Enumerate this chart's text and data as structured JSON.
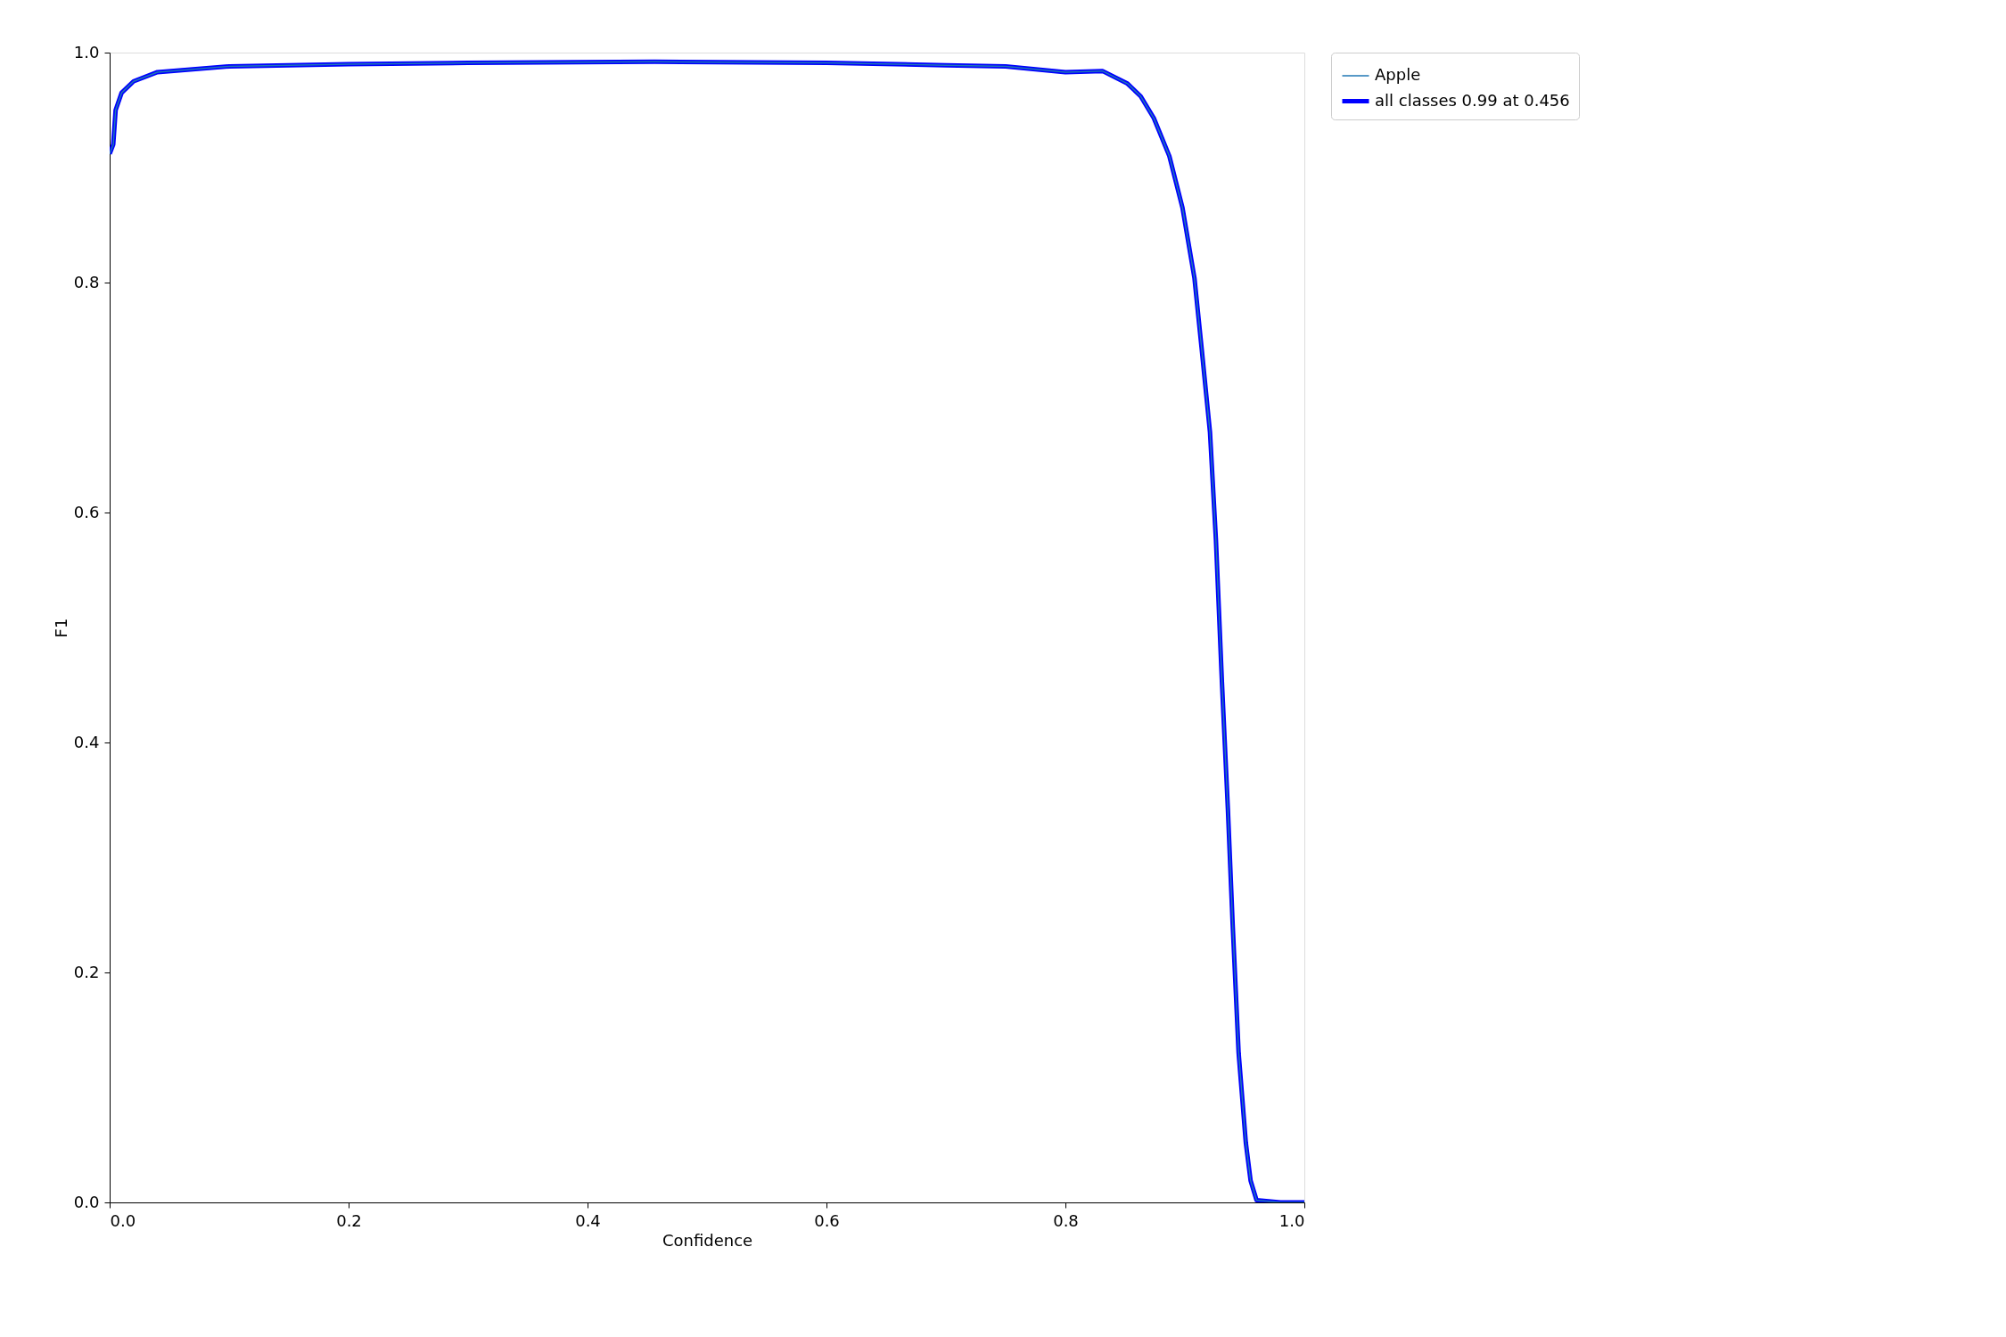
{
  "chart_data": {
    "type": "line",
    "xlabel": "Confidence",
    "ylabel": "F1",
    "xlim": [
      0,
      1
    ],
    "ylim": [
      0,
      1
    ],
    "xticks": [
      {
        "value": 0,
        "label": "0.0"
      },
      {
        "value": 0.2,
        "label": "0.2"
      },
      {
        "value": 0.4,
        "label": "0.4"
      },
      {
        "value": 0.6,
        "label": "0.6"
      },
      {
        "value": 0.8,
        "label": "0.8"
      },
      {
        "value": 1,
        "label": "1.0"
      }
    ],
    "yticks": [
      {
        "value": 0,
        "label": "0.0"
      },
      {
        "value": 0.2,
        "label": "0.2"
      },
      {
        "value": 0.4,
        "label": "0.4"
      },
      {
        "value": 0.6,
        "label": "0.6"
      },
      {
        "value": 0.8,
        "label": "0.8"
      },
      {
        "value": 1,
        "label": "1.0"
      }
    ],
    "x": [
      0,
      0.003,
      0.005,
      0.01,
      0.02,
      0.04,
      0.1,
      0.2,
      0.3,
      0.456,
      0.6,
      0.7,
      0.75,
      0.8,
      0.831,
      0.852,
      0.863,
      0.874,
      0.887,
      0.898,
      0.908,
      0.914,
      0.921,
      0.926,
      0.931,
      0.936,
      0.94,
      0.945,
      0.951,
      0.955,
      0.96,
      0.98,
      1
    ],
    "series": [
      {
        "name": "Apple",
        "color": "#1f77b4",
        "values": [
          0.912,
          0.92,
          0.95,
          0.965,
          0.975,
          0.983,
          0.988,
          0.99,
          0.991,
          0.992,
          0.991,
          0.989,
          0.988,
          0.983,
          0.984,
          0.973,
          0.962,
          0.943,
          0.91,
          0.865,
          0.804,
          0.743,
          0.67,
          0.576,
          0.453,
          0.342,
          0.242,
          0.13,
          0.052,
          0.019,
          0.002,
          0,
          0
        ]
      },
      {
        "name": "all classes 0.99 at 0.456",
        "color": "#0000ff",
        "values": [
          0.912,
          0.92,
          0.95,
          0.965,
          0.975,
          0.983,
          0.988,
          0.99,
          0.991,
          0.992,
          0.991,
          0.989,
          0.988,
          0.983,
          0.984,
          0.973,
          0.962,
          0.943,
          0.91,
          0.865,
          0.804,
          0.743,
          0.67,
          0.576,
          0.453,
          0.342,
          0.242,
          0.13,
          0.052,
          0.019,
          0.002,
          0,
          0
        ]
      }
    ],
    "legend": "top right",
    "grid": false,
    "marker": "none",
    "line_style": "solid"
  }
}
